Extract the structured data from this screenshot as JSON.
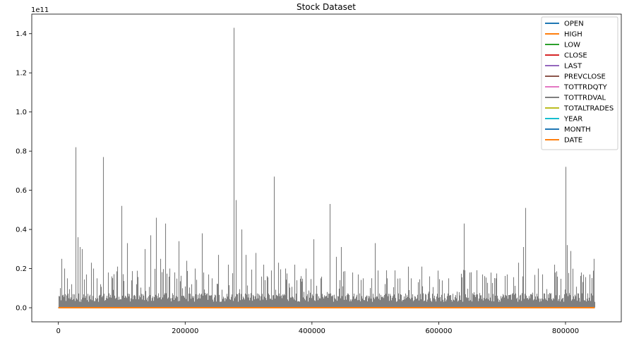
{
  "chart_data": {
    "type": "line",
    "title": "Stock Dataset",
    "xlabel": "",
    "ylabel": "",
    "y_offset_text": "1e11",
    "xlim": [
      -42000,
      888000
    ],
    "ylim": [
      -0.072,
      1.5
    ],
    "x_ticks": [
      0,
      200000,
      400000,
      600000,
      800000
    ],
    "x_tick_labels": [
      "0",
      "200000",
      "400000",
      "600000",
      "800000"
    ],
    "y_ticks": [
      0.0,
      0.2,
      0.4,
      0.6,
      0.8,
      1.0,
      1.2,
      1.4
    ],
    "y_tick_labels": [
      "0.0",
      "0.2",
      "0.4",
      "0.6",
      "0.8",
      "1.0",
      "1.2",
      "1.4"
    ],
    "grid": false,
    "legend_position": "top-right",
    "series": [
      {
        "name": "OPEN",
        "color": "#1f77b4",
        "values_constant": 0
      },
      {
        "name": "HIGH",
        "color": "#ff7f0e",
        "values_constant": 0
      },
      {
        "name": "LOW",
        "color": "#2ca02c",
        "values_constant": 0
      },
      {
        "name": "CLOSE",
        "color": "#d62728",
        "values_constant": 0
      },
      {
        "name": "LAST",
        "color": "#9467bd",
        "values_constant": 0
      },
      {
        "name": "PREVCLOSE",
        "color": "#8c564b",
        "values_constant": 0
      },
      {
        "name": "TOTTRDQTY",
        "color": "#e377c2",
        "values_constant": 0
      },
      {
        "name": "TOTTRDVAL",
        "color": "#7f7f7f",
        "baseline": 0.05,
        "x_range": [
          0,
          846000
        ],
        "spikes": [
          [
            2000,
            0.1
          ],
          [
            5000,
            0.25
          ],
          [
            9000,
            0.2
          ],
          [
            14000,
            0.15
          ],
          [
            20000,
            0.12
          ],
          [
            27000,
            0.82
          ],
          [
            30000,
            0.36
          ],
          [
            34000,
            0.31
          ],
          [
            37000,
            0.3
          ],
          [
            44000,
            0.17
          ],
          [
            52000,
            0.23
          ],
          [
            55000,
            0.2
          ],
          [
            60000,
            0.15
          ],
          [
            66000,
            0.12
          ],
          [
            71000,
            0.77
          ],
          [
            78000,
            0.18
          ],
          [
            84000,
            0.16
          ],
          [
            93000,
            0.21
          ],
          [
            99000,
            0.52
          ],
          [
            108000,
            0.33
          ],
          [
            115000,
            0.14
          ],
          [
            123000,
            0.12
          ],
          [
            136000,
            0.3
          ],
          [
            145000,
            0.37
          ],
          [
            154000,
            0.46
          ],
          [
            161000,
            0.25
          ],
          [
            168000,
            0.43
          ],
          [
            175000,
            0.2
          ],
          [
            190000,
            0.34
          ],
          [
            202000,
            0.24
          ],
          [
            215000,
            0.2
          ],
          [
            226000,
            0.38
          ],
          [
            236000,
            0.17
          ],
          [
            252000,
            0.27
          ],
          [
            268000,
            0.22
          ],
          [
            277000,
            1.43
          ],
          [
            280000,
            0.55
          ],
          [
            289000,
            0.4
          ],
          [
            296000,
            0.27
          ],
          [
            311000,
            0.28
          ],
          [
            323000,
            0.22
          ],
          [
            340000,
            0.67
          ],
          [
            347000,
            0.23
          ],
          [
            358000,
            0.2
          ],
          [
            372000,
            0.22
          ],
          [
            390000,
            0.2
          ],
          [
            402000,
            0.35
          ],
          [
            414000,
            0.15
          ],
          [
            428000,
            0.53
          ],
          [
            438000,
            0.26
          ],
          [
            446000,
            0.31
          ],
          [
            464000,
            0.18
          ],
          [
            480000,
            0.15
          ],
          [
            499000,
            0.33
          ],
          [
            518000,
            0.15
          ],
          [
            538000,
            0.15
          ],
          [
            552000,
            0.21
          ],
          [
            573000,
            0.21
          ],
          [
            585000,
            0.16
          ],
          [
            598000,
            0.19
          ],
          [
            615000,
            0.15
          ],
          [
            640000,
            0.43
          ],
          [
            648000,
            0.18
          ],
          [
            669000,
            0.17
          ],
          [
            690000,
            0.15
          ],
          [
            708000,
            0.17
          ],
          [
            725000,
            0.23
          ],
          [
            733000,
            0.31
          ],
          [
            737000,
            0.51
          ],
          [
            757000,
            0.2
          ],
          [
            782000,
            0.22
          ],
          [
            800000,
            0.72
          ],
          [
            802000,
            0.32
          ],
          [
            808000,
            0.29
          ],
          [
            825000,
            0.18
          ],
          [
            838000,
            0.17
          ],
          [
            845000,
            0.25
          ]
        ]
      },
      {
        "name": "TOTALTRADES",
        "color": "#bcbd22",
        "values_constant": 0
      },
      {
        "name": "YEAR",
        "color": "#17becf",
        "values_constant": 0
      },
      {
        "name": "MONTH",
        "color": "#1f77b4",
        "values_constant": 0
      },
      {
        "name": "DATE",
        "color": "#ff7f0e",
        "values_constant": 0
      }
    ]
  }
}
